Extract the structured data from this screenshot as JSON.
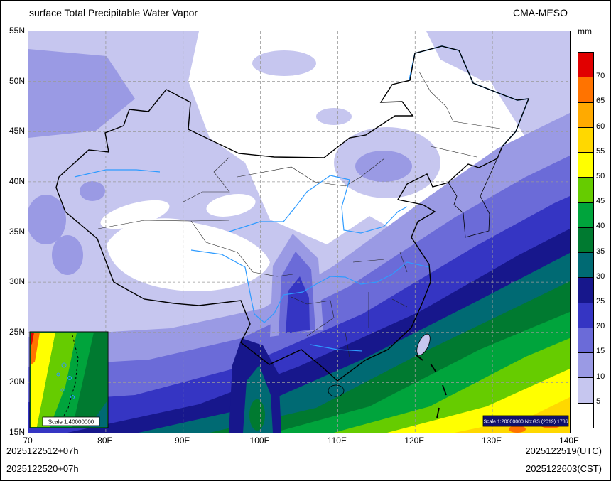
{
  "header": {
    "title": "surface Total Precipitable Water Vapor",
    "model": "CMA-MESO"
  },
  "colorbar": {
    "unit": "mm",
    "tick_labels": [
      "70",
      "65",
      "60",
      "55",
      "50",
      "45",
      "40",
      "35",
      "30",
      "25",
      "20",
      "15",
      "10",
      "5"
    ],
    "colors_top_to_bottom": [
      "#e10000",
      "#ff7300",
      "#ffaa00",
      "#ffd800",
      "#ffff00",
      "#66cc00",
      "#00a43c",
      "#007a30",
      "#006a73",
      "#17178c",
      "#3535c3",
      "#6b6bd8",
      "#9a9ae4",
      "#c6c6ef",
      "#ffffff"
    ]
  },
  "axes": {
    "lat_labels": [
      "55N",
      "50N",
      "45N",
      "40N",
      "35N",
      "30N",
      "25N",
      "20N",
      "15N"
    ],
    "lon_labels": [
      "70",
      "80E",
      "90E",
      "100E",
      "110E",
      "120E",
      "130E",
      "140E"
    ]
  },
  "map": {
    "scale_label": "Scale 1:20000000 No:GS (2019) 1786",
    "inset_scale_label": "Scale 1:40000000"
  },
  "footer": {
    "left_line1": "2025122512+07h",
    "left_line2": "2025122520+07h",
    "right_line1": "2025122519(UTC)",
    "right_line2": "2025122603(CST)"
  }
}
